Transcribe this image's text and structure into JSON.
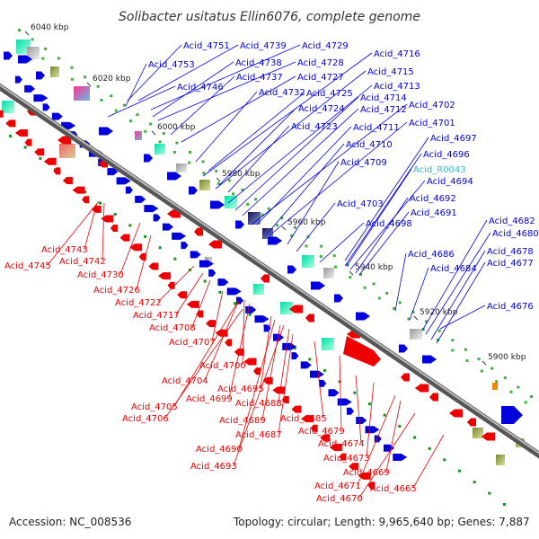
{
  "title": "Solibacter usitatus Ellin6076, complete genome",
  "footer": {
    "accession": "Accession: NC_008536",
    "topology": "Topology: circular; Length: 9,965,640 bp; Genes: 7,887"
  },
  "colors": {
    "forward": "#0000dd",
    "reverse": "#ee0000",
    "rna": "#33bbcc",
    "backbone": "#888888",
    "connector": "#0000ee",
    "connector_reverse": "#ee0000"
  },
  "ticks": [
    {
      "label": "6040 kbp"
    },
    {
      "label": "6020 kbp"
    },
    {
      "label": "6000 kbp"
    },
    {
      "label": "5980 kbp"
    },
    {
      "label": "5960 kbp"
    },
    {
      "label": "5940 kbp"
    },
    {
      "label": "5920 kbp"
    },
    {
      "label": "5900 kbp"
    }
  ],
  "forward_labels": [
    {
      "text": "Acid_4751",
      "kind": "cds"
    },
    {
      "text": "Acid_4739",
      "kind": "cds"
    },
    {
      "text": "Acid_4729",
      "kind": "cds"
    },
    {
      "text": "Acid_4753",
      "kind": "cds"
    },
    {
      "text": "Acid_4738",
      "kind": "cds"
    },
    {
      "text": "Acid_4728",
      "kind": "cds"
    },
    {
      "text": "Acid_4716",
      "kind": "cds"
    },
    {
      "text": "Acid_4737",
      "kind": "cds"
    },
    {
      "text": "Acid_4727",
      "kind": "cds"
    },
    {
      "text": "Acid_4715",
      "kind": "cds"
    },
    {
      "text": "Acid_4746",
      "kind": "cds"
    },
    {
      "text": "Acid_4732",
      "kind": "cds"
    },
    {
      "text": "Acid_4725",
      "kind": "cds"
    },
    {
      "text": "Acid_4713",
      "kind": "cds"
    },
    {
      "text": "Acid_4714",
      "kind": "cds"
    },
    {
      "text": "Acid_4702",
      "kind": "cds"
    },
    {
      "text": "Acid_4724",
      "kind": "cds"
    },
    {
      "text": "Acid_4712",
      "kind": "cds"
    },
    {
      "text": "Acid_4701",
      "kind": "cds"
    },
    {
      "text": "Acid_4723",
      "kind": "cds"
    },
    {
      "text": "Acid_4711",
      "kind": "cds"
    },
    {
      "text": "Acid_4697",
      "kind": "cds"
    },
    {
      "text": "Acid_4710",
      "kind": "cds"
    },
    {
      "text": "Acid_4696",
      "kind": "cds"
    },
    {
      "text": "Acid_4709",
      "kind": "cds"
    },
    {
      "text": "Acid_R0043",
      "kind": "rna"
    },
    {
      "text": "Acid_4694",
      "kind": "cds"
    },
    {
      "text": "Acid_4703",
      "kind": "cds"
    },
    {
      "text": "Acid_4692",
      "kind": "cds"
    },
    {
      "text": "Acid_4691",
      "kind": "cds"
    },
    {
      "text": "Acid_4698",
      "kind": "cds"
    },
    {
      "text": "Acid_4682",
      "kind": "cds"
    },
    {
      "text": "Acid_4680",
      "kind": "cds"
    },
    {
      "text": "Acid_4686",
      "kind": "cds"
    },
    {
      "text": "Acid_4678",
      "kind": "cds"
    },
    {
      "text": "Acid_4684",
      "kind": "cds"
    },
    {
      "text": "Acid_4677",
      "kind": "cds"
    },
    {
      "text": "Acid_4676",
      "kind": "cds"
    }
  ],
  "reverse_labels": [
    {
      "text": "Acid_4743"
    },
    {
      "text": "Acid_4745"
    },
    {
      "text": "Acid_4742"
    },
    {
      "text": "Acid_4730"
    },
    {
      "text": "Acid_4726"
    },
    {
      "text": "Acid_4722"
    },
    {
      "text": "Acid_4717"
    },
    {
      "text": "Acid_4708"
    },
    {
      "text": "Acid_4707"
    },
    {
      "text": "Acid_4700"
    },
    {
      "text": "Acid_4704"
    },
    {
      "text": "Acid_4695"
    },
    {
      "text": "Acid_4699"
    },
    {
      "text": "Acid_4705"
    },
    {
      "text": "Acid_4688"
    },
    {
      "text": "Acid_4706"
    },
    {
      "text": "Acid_4689"
    },
    {
      "text": "Acid_4685"
    },
    {
      "text": "Acid_4687"
    },
    {
      "text": "Acid_4679"
    },
    {
      "text": "Acid_4690"
    },
    {
      "text": "Acid_4674"
    },
    {
      "text": "Acid_4673"
    },
    {
      "text": "Acid_4693"
    },
    {
      "text": "Acid_4669"
    },
    {
      "text": "Acid_4671"
    },
    {
      "text": "Acid_4665"
    },
    {
      "text": "Acid_4670"
    }
  ]
}
